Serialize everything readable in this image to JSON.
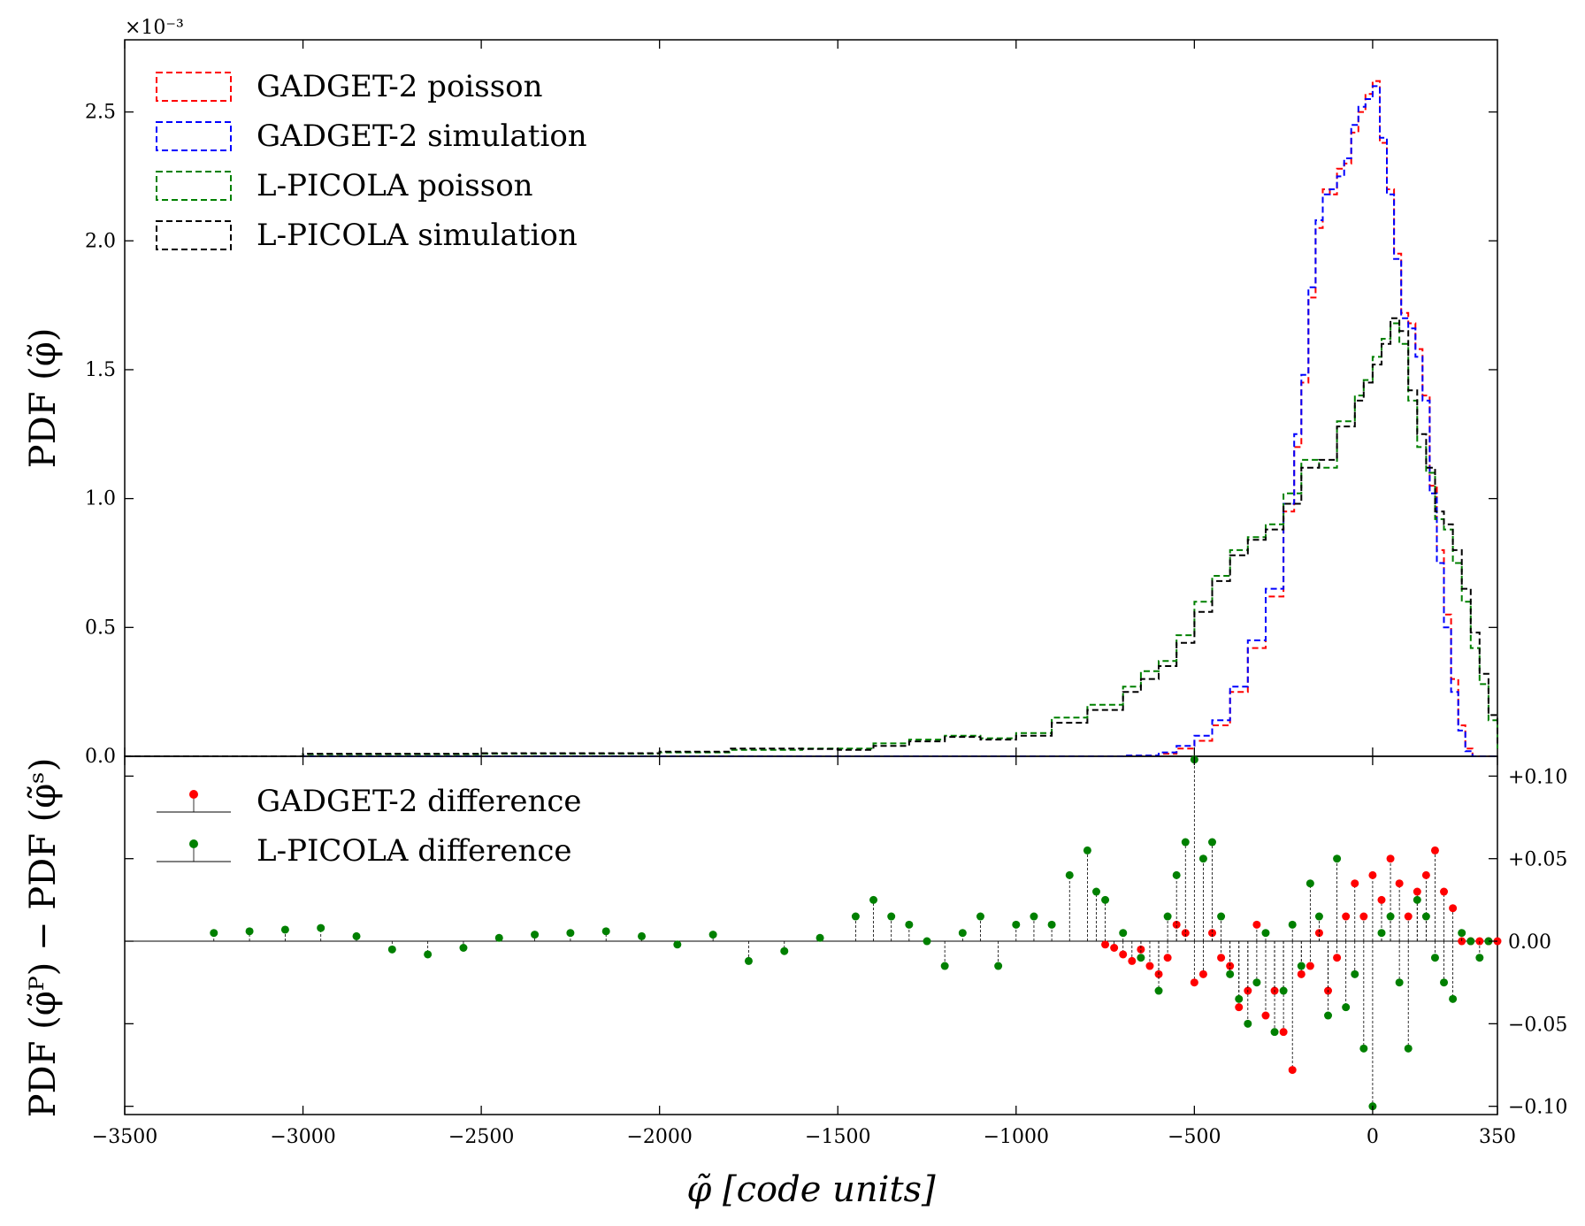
{
  "chart_data": [
    {
      "type": "line",
      "step_histogram": true,
      "ylabel": "PDF (φ̃)",
      "y_scale_factor": "×10⁻³",
      "xlim": [
        -3500,
        350
      ],
      "ylim": [
        0,
        2.78
      ],
      "xticks": [
        -3500,
        -3000,
        -2500,
        -2000,
        -1500,
        -1000,
        -500,
        0
      ],
      "yticks": [
        {
          "v": 0.0,
          "label": "0.0"
        },
        {
          "v": 0.5,
          "label": "0.5"
        },
        {
          "v": 1.0,
          "label": "1.0"
        },
        {
          "v": 1.5,
          "label": "1.5"
        },
        {
          "v": 2.0,
          "label": "2.0"
        },
        {
          "v": 2.5,
          "label": "2.5"
        }
      ],
      "legend_position": "top-left",
      "series": [
        {
          "name": "GADGET-2 poisson",
          "color": "#ff0000",
          "dashed": true,
          "points": [
            [
              -3500,
              0
            ],
            [
              -800,
              0
            ],
            [
              -700,
              0.002
            ],
            [
              -600,
              0.01
            ],
            [
              -550,
              0.03
            ],
            [
              -500,
              0.06
            ],
            [
              -450,
              0.12
            ],
            [
              -400,
              0.25
            ],
            [
              -350,
              0.42
            ],
            [
              -300,
              0.62
            ],
            [
              -250,
              0.95
            ],
            [
              -220,
              1.2
            ],
            [
              -200,
              1.45
            ],
            [
              -180,
              1.78
            ],
            [
              -160,
              2.05
            ],
            [
              -140,
              2.2
            ],
            [
              -120,
              2.18
            ],
            [
              -100,
              2.28
            ],
            [
              -80,
              2.3
            ],
            [
              -60,
              2.42
            ],
            [
              -40,
              2.5
            ],
            [
              -20,
              2.57
            ],
            [
              0,
              2.62
            ],
            [
              20,
              2.38
            ],
            [
              40,
              2.2
            ],
            [
              60,
              1.95
            ],
            [
              80,
              1.72
            ],
            [
              100,
              1.68
            ],
            [
              120,
              1.58
            ],
            [
              140,
              1.4
            ],
            [
              160,
              1.05
            ],
            [
              180,
              0.8
            ],
            [
              200,
              0.55
            ],
            [
              220,
              0.3
            ],
            [
              240,
              0.12
            ],
            [
              260,
              0.03
            ],
            [
              280,
              0
            ],
            [
              350,
              0
            ]
          ]
        },
        {
          "name": "GADGET-2 simulation",
          "color": "#0000ff",
          "dashed": true,
          "points": [
            [
              -3500,
              0
            ],
            [
              -800,
              0
            ],
            [
              -700,
              0.003
            ],
            [
              -600,
              0.015
            ],
            [
              -550,
              0.04
            ],
            [
              -500,
              0.08
            ],
            [
              -450,
              0.14
            ],
            [
              -400,
              0.27
            ],
            [
              -350,
              0.45
            ],
            [
              -300,
              0.65
            ],
            [
              -250,
              0.98
            ],
            [
              -220,
              1.25
            ],
            [
              -200,
              1.48
            ],
            [
              -180,
              1.82
            ],
            [
              -160,
              2.08
            ],
            [
              -140,
              2.18
            ],
            [
              -120,
              2.2
            ],
            [
              -100,
              2.25
            ],
            [
              -80,
              2.32
            ],
            [
              -60,
              2.45
            ],
            [
              -40,
              2.52
            ],
            [
              -20,
              2.55
            ],
            [
              0,
              2.6
            ],
            [
              20,
              2.4
            ],
            [
              40,
              2.18
            ],
            [
              60,
              1.93
            ],
            [
              80,
              1.7
            ],
            [
              100,
              1.66
            ],
            [
              120,
              1.55
            ],
            [
              140,
              1.38
            ],
            [
              160,
              1.02
            ],
            [
              180,
              0.75
            ],
            [
              200,
              0.5
            ],
            [
              220,
              0.25
            ],
            [
              240,
              0.1
            ],
            [
              260,
              0.02
            ],
            [
              280,
              0
            ],
            [
              350,
              0
            ]
          ]
        },
        {
          "name": "L-PICOLA poisson",
          "color": "#008000",
          "dashed": true,
          "points": [
            [
              -3500,
              0
            ],
            [
              -3000,
              0.008
            ],
            [
              -2500,
              0.01
            ],
            [
              -2000,
              0.015
            ],
            [
              -1800,
              0.025
            ],
            [
              -1600,
              0.03
            ],
            [
              -1500,
              0.03
            ],
            [
              -1400,
              0.05
            ],
            [
              -1300,
              0.065
            ],
            [
              -1200,
              0.08
            ],
            [
              -1100,
              0.07
            ],
            [
              -1000,
              0.09
            ],
            [
              -900,
              0.15
            ],
            [
              -800,
              0.2
            ],
            [
              -700,
              0.27
            ],
            [
              -650,
              0.33
            ],
            [
              -600,
              0.37
            ],
            [
              -550,
              0.47
            ],
            [
              -500,
              0.6
            ],
            [
              -450,
              0.7
            ],
            [
              -400,
              0.8
            ],
            [
              -350,
              0.85
            ],
            [
              -300,
              0.9
            ],
            [
              -250,
              1.02
            ],
            [
              -200,
              1.15
            ],
            [
              -150,
              1.12
            ],
            [
              -100,
              1.3
            ],
            [
              -50,
              1.4
            ],
            [
              -25,
              1.46
            ],
            [
              0,
              1.55
            ],
            [
              25,
              1.62
            ],
            [
              50,
              1.68
            ],
            [
              75,
              1.6
            ],
            [
              100,
              1.38
            ],
            [
              125,
              1.2
            ],
            [
              150,
              1.1
            ],
            [
              175,
              0.92
            ],
            [
              200,
              0.88
            ],
            [
              225,
              0.75
            ],
            [
              250,
              0.6
            ],
            [
              275,
              0.42
            ],
            [
              300,
              0.28
            ],
            [
              325,
              0.14
            ],
            [
              350,
              0.03
            ]
          ]
        },
        {
          "name": "L-PICOLA simulation",
          "color": "#000000",
          "dashed": true,
          "points": [
            [
              -3500,
              0
            ],
            [
              -3000,
              0.01
            ],
            [
              -2500,
              0.012
            ],
            [
              -2000,
              0.018
            ],
            [
              -1800,
              0.03
            ],
            [
              -1600,
              0.028
            ],
            [
              -1500,
              0.025
            ],
            [
              -1400,
              0.04
            ],
            [
              -1300,
              0.058
            ],
            [
              -1200,
              0.075
            ],
            [
              -1100,
              0.065
            ],
            [
              -1000,
              0.08
            ],
            [
              -900,
              0.13
            ],
            [
              -800,
              0.18
            ],
            [
              -700,
              0.25
            ],
            [
              -650,
              0.3
            ],
            [
              -600,
              0.35
            ],
            [
              -550,
              0.44
            ],
            [
              -500,
              0.56
            ],
            [
              -450,
              0.68
            ],
            [
              -400,
              0.78
            ],
            [
              -350,
              0.84
            ],
            [
              -300,
              0.88
            ],
            [
              -250,
              0.98
            ],
            [
              -200,
              1.12
            ],
            [
              -150,
              1.15
            ],
            [
              -100,
              1.28
            ],
            [
              -50,
              1.38
            ],
            [
              -25,
              1.45
            ],
            [
              0,
              1.52
            ],
            [
              25,
              1.6
            ],
            [
              50,
              1.7
            ],
            [
              75,
              1.65
            ],
            [
              100,
              1.42
            ],
            [
              125,
              1.25
            ],
            [
              150,
              1.12
            ],
            [
              175,
              0.95
            ],
            [
              200,
              0.9
            ],
            [
              225,
              0.8
            ],
            [
              250,
              0.65
            ],
            [
              275,
              0.48
            ],
            [
              300,
              0.32
            ],
            [
              325,
              0.16
            ],
            [
              350,
              0.05
            ]
          ]
        }
      ]
    },
    {
      "type": "scatter",
      "stem": true,
      "ylabel": "PDF (φ̃ᴾ) − PDF (φ̃ˢ)",
      "xlabel": "φ̃ [code units]",
      "xlim": [
        -3500,
        350
      ],
      "ylim": [
        -0.105,
        0.112
      ],
      "xticks": [
        {
          "v": -3500,
          "label": "−3500"
        },
        {
          "v": -3000,
          "label": "−3000"
        },
        {
          "v": -2500,
          "label": "−2500"
        },
        {
          "v": -2000,
          "label": "−2000"
        },
        {
          "v": -1500,
          "label": "−1500"
        },
        {
          "v": -1000,
          "label": "−1000"
        },
        {
          "v": -500,
          "label": "−500"
        },
        {
          "v": 0,
          "label": "0"
        },
        {
          "v": 350,
          "label": "350"
        }
      ],
      "yticks": [
        {
          "v": 0.1,
          "label": "+0.10"
        },
        {
          "v": 0.05,
          "label": "+0.05"
        },
        {
          "v": 0.0,
          "label": "0.00"
        },
        {
          "v": -0.05,
          "label": "−0.05"
        },
        {
          "v": -0.1,
          "label": "−0.10"
        }
      ],
      "legend_position": "top-left",
      "series": [
        {
          "name": "GADGET-2 difference",
          "color": "#ff0000",
          "x": [
            -750,
            -725,
            -700,
            -675,
            -650,
            -625,
            -600,
            -575,
            -550,
            -525,
            -500,
            -475,
            -450,
            -425,
            -400,
            -375,
            -350,
            -325,
            -300,
            -275,
            -250,
            -225,
            -200,
            -175,
            -150,
            -125,
            -100,
            -75,
            -50,
            -25,
            0,
            25,
            50,
            75,
            100,
            125,
            150,
            175,
            200,
            225,
            250,
            275,
            300,
            325,
            350
          ],
          "values": [
            -0.002,
            -0.004,
            -0.008,
            -0.012,
            -0.005,
            -0.015,
            -0.02,
            -0.01,
            0.01,
            0.005,
            -0.025,
            -0.02,
            0.005,
            -0.01,
            -0.015,
            -0.04,
            -0.03,
            0.01,
            -0.045,
            -0.03,
            -0.055,
            -0.078,
            -0.02,
            -0.015,
            0.005,
            -0.03,
            -0.01,
            0.015,
            0.035,
            0.015,
            0.04,
            0.025,
            0.05,
            0.035,
            0.015,
            0.03,
            0.04,
            0.055,
            0.03,
            0.02,
            0.0,
            0.0,
            0.0,
            0.0,
            0.0
          ]
        },
        {
          "name": "L-PICOLA difference",
          "color": "#008000",
          "x": [
            -3250,
            -3150,
            -3050,
            -2950,
            -2850,
            -2750,
            -2650,
            -2550,
            -2450,
            -2350,
            -2250,
            -2150,
            -2050,
            -1950,
            -1850,
            -1750,
            -1650,
            -1550,
            -1450,
            -1400,
            -1350,
            -1300,
            -1250,
            -1200,
            -1150,
            -1100,
            -1050,
            -1000,
            -950,
            -900,
            -850,
            -800,
            -775,
            -750,
            -700,
            -650,
            -600,
            -575,
            -550,
            -525,
            -500,
            -475,
            -450,
            -425,
            -400,
            -375,
            -350,
            -325,
            -300,
            -275,
            -250,
            -225,
            -200,
            -175,
            -150,
            -125,
            -100,
            -75,
            -50,
            -25,
            0,
            25,
            50,
            75,
            100,
            125,
            150,
            175,
            200,
            225,
            250,
            275,
            300,
            325
          ],
          "values": [
            0.005,
            0.006,
            0.007,
            0.008,
            0.003,
            -0.005,
            -0.008,
            -0.004,
            0.002,
            0.004,
            0.005,
            0.006,
            0.003,
            -0.002,
            0.004,
            -0.012,
            -0.006,
            0.002,
            0.015,
            0.025,
            0.015,
            0.01,
            0.0,
            -0.015,
            0.005,
            0.015,
            -0.015,
            0.01,
            0.015,
            0.01,
            0.04,
            0.055,
            0.03,
            0.025,
            0.005,
            -0.01,
            -0.03,
            0.015,
            0.04,
            0.06,
            0.11,
            0.05,
            0.06,
            0.015,
            -0.02,
            -0.035,
            -0.05,
            -0.025,
            0.005,
            -0.055,
            -0.03,
            0.01,
            -0.015,
            0.035,
            0.015,
            -0.045,
            0.05,
            -0.04,
            -0.02,
            -0.065,
            -0.1,
            0.005,
            0.015,
            -0.025,
            -0.065,
            0.025,
            0.015,
            -0.01,
            -0.025,
            -0.035,
            0.005,
            0.0,
            -0.01,
            0.0
          ]
        }
      ]
    }
  ]
}
